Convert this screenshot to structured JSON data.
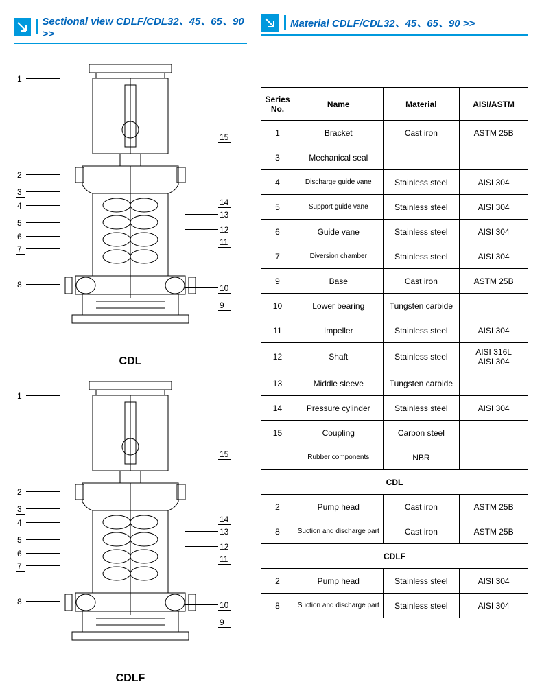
{
  "headers": {
    "left": "Sectional view CDLF/CDL32、45、65、90 >>",
    "right": "Material CDLF/CDL32、45、65、90 >>"
  },
  "diagrams": {
    "top_label": "CDL",
    "bottom_label": "CDLF",
    "callouts_left": [
      "1",
      "2",
      "3",
      "4",
      "5",
      "6",
      "7",
      "8"
    ],
    "callouts_right": [
      "15",
      "14",
      "13",
      "12",
      "11",
      "10",
      "9"
    ]
  },
  "table": {
    "columns": [
      "Series No.",
      "Name",
      "Material",
      "AISI/ASTM"
    ],
    "rows_main": [
      {
        "no": "1",
        "name": "Bracket",
        "mat": "Cast iron",
        "aisi": "ASTM 25B"
      },
      {
        "no": "3",
        "name": "Mechanical seal",
        "mat": "",
        "aisi": ""
      },
      {
        "no": "4",
        "name": "Discharge guide vane",
        "mat": "Stainless steel",
        "aisi": "AISI 304",
        "small": true
      },
      {
        "no": "5",
        "name": "Support guide vane",
        "mat": "Stainless steel",
        "aisi": "AISI 304",
        "small": true
      },
      {
        "no": "6",
        "name": "Guide vane",
        "mat": "Stainless steel",
        "aisi": "AISI 304"
      },
      {
        "no": "7",
        "name": "Diversion chamber",
        "mat": "Stainless steel",
        "aisi": "AISI 304",
        "small": true
      },
      {
        "no": "9",
        "name": "Base",
        "mat": "Cast iron",
        "aisi": "ASTM 25B"
      },
      {
        "no": "10",
        "name": "Lower bearing",
        "mat": "Tungsten carbide",
        "aisi": ""
      },
      {
        "no": "11",
        "name": "Impeller",
        "mat": "Stainless steel",
        "aisi": "AISI 304"
      },
      {
        "no": "12",
        "name": "Shaft",
        "mat": "Stainless steel",
        "aisi": "AISI 316L\nAISI 304"
      },
      {
        "no": "13",
        "name": "Middle sleeve",
        "mat": "Tungsten carbide",
        "aisi": ""
      },
      {
        "no": "14",
        "name": "Pressure cylinder",
        "mat": "Stainless steel",
        "aisi": "AISI 304"
      },
      {
        "no": "15",
        "name": "Coupling",
        "mat": "Carbon steel",
        "aisi": ""
      },
      {
        "no": "",
        "name": "Rubber components",
        "mat": "NBR",
        "aisi": "",
        "small": true
      }
    ],
    "section_cdl": "CDL",
    "rows_cdl": [
      {
        "no": "2",
        "name": "Pump head",
        "mat": "Cast iron",
        "aisi": "ASTM 25B"
      },
      {
        "no": "8",
        "name": "Suction and discharge part",
        "mat": "Cast iron",
        "aisi": "ASTM 25B",
        "small": true
      }
    ],
    "section_cdlf": "CDLF",
    "rows_cdlf": [
      {
        "no": "2",
        "name": "Pump head",
        "mat": "Stainless steel",
        "aisi": "AISI 304"
      },
      {
        "no": "8",
        "name": "Suction and discharge part",
        "mat": "Stainless steel",
        "aisi": "AISI 304",
        "small": true
      }
    ]
  },
  "colors": {
    "accent": "#0099dd",
    "title": "#0066bb",
    "border": "#000000",
    "bg": "#ffffff"
  }
}
